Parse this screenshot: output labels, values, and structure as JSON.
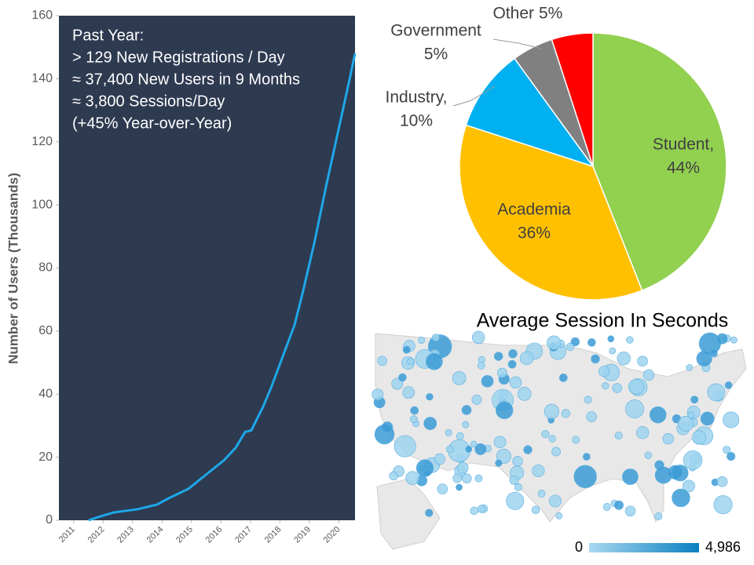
{
  "chart_data": [
    {
      "type": "line",
      "annotation": [
        "Past Year:",
        "> 129 New Registrations / Day",
        "≈ 37,400 New Users in 9 Months",
        "≈ 3,800 Sessions/Day",
        "(+45% Year-over-Year)"
      ],
      "y_label": "Number of Users (Thousands)",
      "x": [
        2011.51,
        2011.83,
        2012.37,
        2013.17,
        2013.83,
        2014.23,
        2014.9,
        2015.43,
        2016.1,
        2016.5,
        2016.82,
        2017.03,
        2017.43,
        2017.7,
        2018.1,
        2018.5,
        2018.77,
        2019.17,
        2019.57,
        2019.97,
        2020.37,
        2020.55
      ],
      "series": [
        {
          "color": "#1ea7e8",
          "values": [
            0,
            1,
            2.5,
            3.5,
            5,
            7,
            10,
            14,
            19,
            23,
            28,
            28.5,
            36,
            42,
            52,
            62,
            72,
            88,
            106,
            123,
            140,
            148
          ]
        }
      ],
      "xlim": [
        2010.5,
        2020.55
      ],
      "xticks": [
        2011,
        2012,
        2013,
        2014,
        2015,
        2016,
        2017,
        2018,
        2019,
        2020
      ],
      "ylim": [
        0,
        160
      ],
      "yticks": [
        0,
        20,
        40,
        60,
        80,
        100,
        120,
        140,
        160
      ]
    },
    {
      "type": "pie",
      "categories": [
        "Student,",
        "Academia",
        "Industry,",
        "Government",
        "Other"
      ],
      "values": [
        44,
        36,
        10,
        5,
        5
      ],
      "value_labels": [
        "44%",
        "36%",
        "10%",
        "5%",
        "5%"
      ],
      "colors": [
        "#92d050",
        "#ffc000",
        "#00b0f0",
        "#808080",
        "#ff0000"
      ]
    },
    {
      "type": "map",
      "title": "Average Session In Seconds",
      "colorbar": {
        "range": [
          0,
          4986
        ],
        "ticks": [
          0,
          {
            "value": 4986,
            "label": "4,986"
          }
        ],
        "colors": [
          "#a8d8f0",
          "#0a7fc0"
        ]
      }
    }
  ]
}
